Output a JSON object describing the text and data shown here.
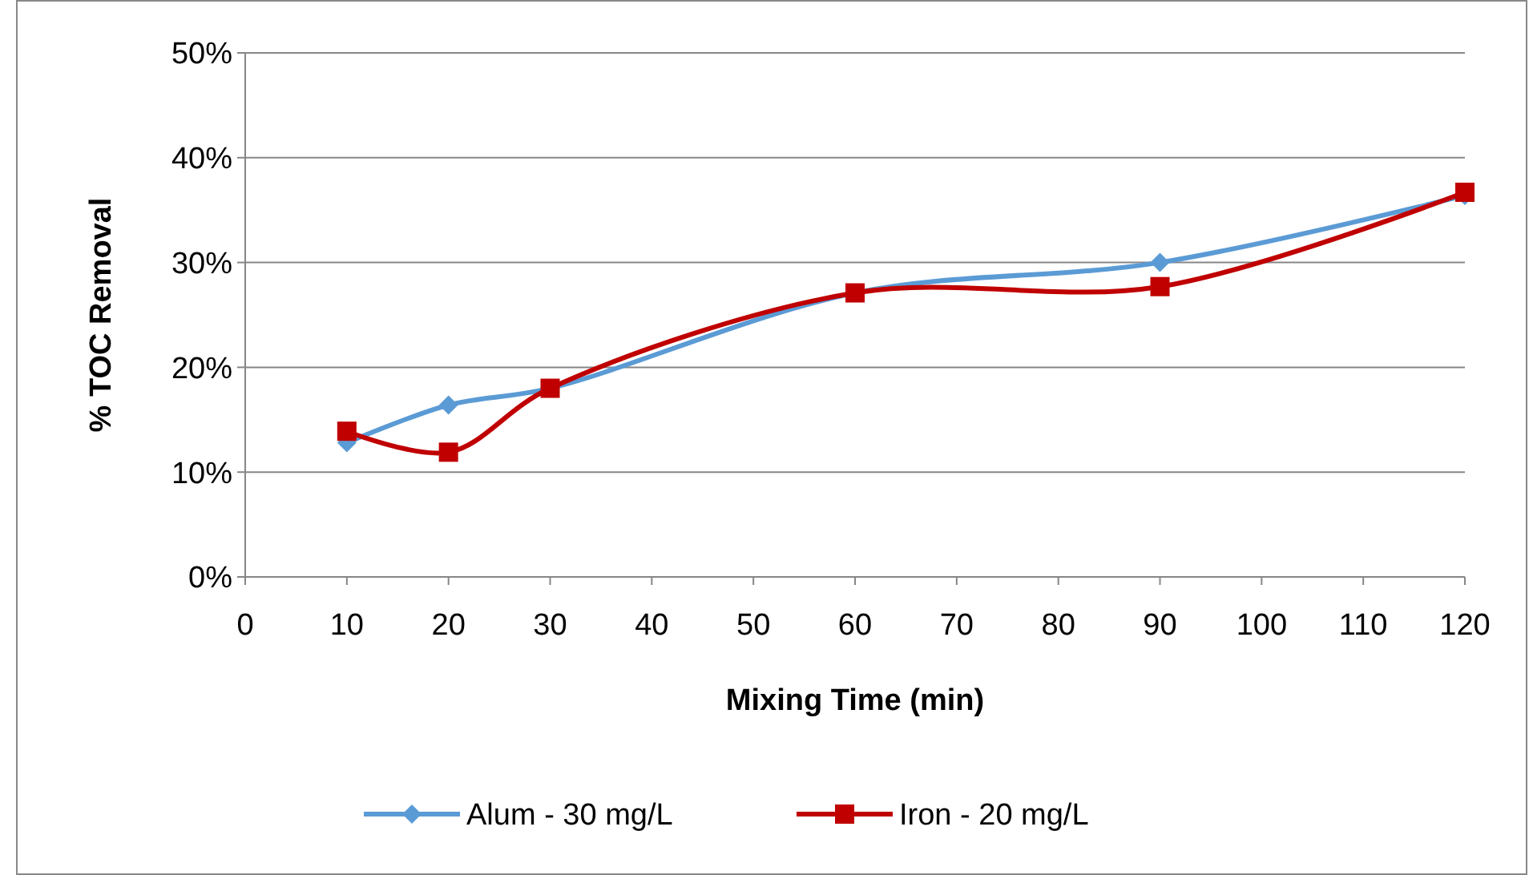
{
  "chart_data": {
    "type": "line",
    "xlabel": "Mixing Time (min)",
    "ylabel": "% TOC Removal",
    "x": [
      10,
      20,
      30,
      60,
      90,
      120
    ],
    "series": [
      {
        "name": "Alum - 30 mg/L",
        "color": "#5b9bd5",
        "marker": "diamond",
        "values": [
          12.8,
          16.4,
          18.0,
          27.1,
          30.0,
          36.4
        ]
      },
      {
        "name": "Iron - 20 mg/L",
        "color": "#c00000",
        "marker": "square",
        "values": [
          13.9,
          11.9,
          18.0,
          27.1,
          27.7,
          36.7
        ]
      }
    ],
    "xlim": [
      0,
      120
    ],
    "xticks": [
      0,
      10,
      20,
      30,
      40,
      50,
      60,
      70,
      80,
      90,
      100,
      110,
      120
    ],
    "ylim": [
      0,
      50
    ],
    "yticks": [
      {
        "value": 0,
        "label": "0%"
      },
      {
        "value": 10,
        "label": "10%"
      },
      {
        "value": 20,
        "label": "20%"
      },
      {
        "value": 30,
        "label": "30%"
      },
      {
        "value": 40,
        "label": "40%"
      },
      {
        "value": 50,
        "label": "50%"
      }
    ],
    "grid": "y",
    "legend": "bottom",
    "line_style": "solid"
  }
}
